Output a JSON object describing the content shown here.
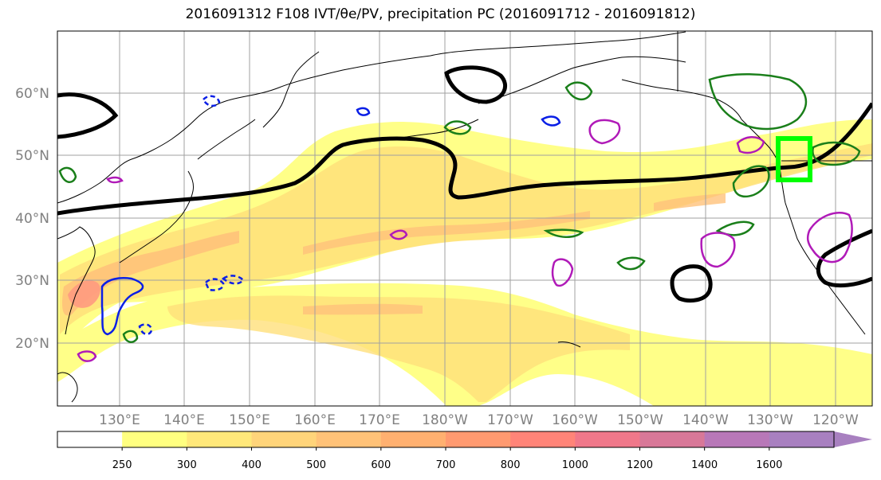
{
  "title": "2016091312 F108 IVT/θe/PV, precipitation PC (2016091712 - 2016091812)",
  "map": {
    "lat_labels": [
      "60°N",
      "50°N",
      "40°N",
      "30°N",
      "20°N"
    ],
    "lon_labels": [
      "130°E",
      "140°E",
      "150°E",
      "160°E",
      "170°E",
      "180°W",
      "170°W",
      "160°W",
      "150°W",
      "140°W",
      "130°W",
      "120°W"
    ]
  },
  "colorbar": {
    "levels": [
      "250",
      "300",
      "400",
      "500",
      "600",
      "700",
      "800",
      "1000",
      "1200",
      "1400",
      "1600"
    ],
    "colors": [
      "#ffffff",
      "#ffff80",
      "#ffe87a",
      "#ffd47a",
      "#ffc278",
      "#ffb070",
      "#ff9a70",
      "#ff8478",
      "#f0788a",
      "#d87898",
      "#b878b8",
      "#a880c0"
    ]
  },
  "colors": {
    "coastline": "#000000",
    "theta_e_contour": "#000000",
    "pv_contour_green": "#1a7f1a",
    "pv_contour_blue": "#0a1fe6",
    "pv_contour_magenta": "#b01ab8",
    "target_box": "#00ff00",
    "gridline": "#a0a0a0",
    "ivt_light": "#ffff88",
    "ivt_mid": "#ffe07a",
    "ivt_high": "#ffc27a",
    "ivt_peak": "#ff9a80"
  }
}
